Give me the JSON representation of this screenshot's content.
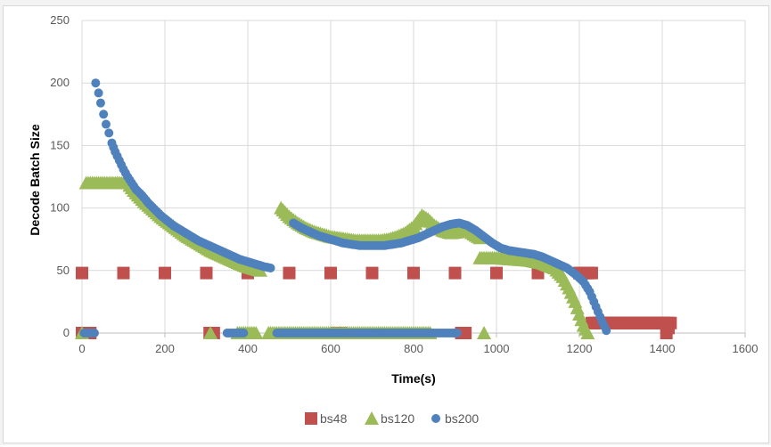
{
  "chart_data": {
    "type": "scatter",
    "title": "",
    "xlabel": "Time(s)",
    "ylabel": "Decode Batch Size",
    "xlim": [
      0,
      1600
    ],
    "ylim": [
      0,
      250
    ],
    "xticks": [
      0,
      200,
      400,
      600,
      800,
      1000,
      1200,
      1400,
      1600
    ],
    "yticks": [
      0,
      50,
      100,
      150,
      200,
      250
    ],
    "grid": true,
    "legend": "bottom",
    "series": [
      {
        "name": "bs48",
        "color": "#c0504d",
        "marker": "square",
        "points": [
          [
            0,
            0
          ],
          [
            10,
            0
          ],
          [
            20,
            0
          ],
          [
            0,
            48
          ],
          [
            100,
            48
          ],
          [
            200,
            48
          ],
          [
            300,
            48
          ],
          [
            400,
            48
          ],
          [
            500,
            48
          ],
          [
            600,
            48
          ],
          [
            700,
            48
          ],
          [
            800,
            48
          ],
          [
            900,
            48
          ],
          [
            1000,
            48
          ],
          [
            1100,
            48
          ],
          [
            1200,
            48
          ],
          [
            1230,
            48
          ],
          [
            308,
            0
          ],
          [
            318,
            0
          ],
          [
            615,
            0
          ],
          [
            625,
            0
          ],
          [
            915,
            0
          ],
          [
            925,
            0
          ],
          [
            1230,
            8
          ],
          [
            1280,
            8
          ],
          [
            1330,
            8
          ],
          [
            1380,
            8
          ],
          [
            1420,
            8
          ],
          [
            1410,
            0
          ]
        ]
      },
      {
        "name": "bs120",
        "color": "#9bbb59",
        "marker": "triangle",
        "points": [
          [
            0,
            0
          ],
          [
            10,
            120
          ],
          [
            30,
            120
          ],
          [
            50,
            120
          ],
          [
            70,
            120
          ],
          [
            90,
            120
          ],
          [
            110,
            120
          ],
          [
            130,
            112
          ],
          [
            150,
            105
          ],
          [
            170,
            99
          ],
          [
            190,
            93
          ],
          [
            210,
            88
          ],
          [
            230,
            83
          ],
          [
            250,
            78
          ],
          [
            270,
            74
          ],
          [
            290,
            70
          ],
          [
            310,
            66
          ],
          [
            330,
            63
          ],
          [
            350,
            60
          ],
          [
            370,
            57
          ],
          [
            390,
            54
          ],
          [
            410,
            52
          ],
          [
            430,
            50
          ],
          [
            310,
            0
          ],
          [
            375,
            0
          ],
          [
            420,
            0
          ],
          [
            480,
            100
          ],
          [
            500,
            93
          ],
          [
            520,
            88
          ],
          [
            540,
            84
          ],
          [
            560,
            81
          ],
          [
            580,
            79
          ],
          [
            600,
            77
          ],
          [
            620,
            76
          ],
          [
            640,
            75
          ],
          [
            660,
            74
          ],
          [
            680,
            74
          ],
          [
            700,
            74
          ],
          [
            720,
            74
          ],
          [
            740,
            75
          ],
          [
            760,
            77
          ],
          [
            780,
            80
          ],
          [
            800,
            85
          ],
          [
            820,
            94
          ],
          [
            835,
            91
          ],
          [
            850,
            86
          ],
          [
            870,
            82
          ],
          [
            890,
            80
          ],
          [
            910,
            81
          ],
          [
            925,
            84
          ],
          [
            940,
            80
          ],
          [
            960,
            76
          ],
          [
            960,
            60
          ],
          [
            1000,
            60
          ],
          [
            1040,
            59
          ],
          [
            1080,
            58
          ],
          [
            1110,
            56
          ],
          [
            1140,
            52
          ],
          [
            1160,
            45
          ],
          [
            1175,
            36
          ],
          [
            1190,
            25
          ],
          [
            1200,
            15
          ],
          [
            1210,
            6
          ],
          [
            1220,
            0
          ],
          [
            450,
            0
          ],
          [
            500,
            0
          ],
          [
            550,
            0
          ],
          [
            600,
            0
          ],
          [
            650,
            0
          ],
          [
            700,
            0
          ],
          [
            750,
            0
          ],
          [
            800,
            0
          ],
          [
            840,
            0
          ],
          [
            970,
            0
          ]
        ]
      },
      {
        "name": "bs200",
        "color": "#4f81bd",
        "marker": "circle",
        "points": [
          [
            5,
            0
          ],
          [
            30,
            0
          ],
          [
            33,
            200
          ],
          [
            40,
            192
          ],
          [
            45,
            184
          ],
          [
            52,
            175
          ],
          [
            58,
            167
          ],
          [
            65,
            160
          ],
          [
            72,
            152
          ],
          [
            80,
            145
          ],
          [
            90,
            138
          ],
          [
            100,
            131
          ],
          [
            110,
            125
          ],
          [
            120,
            120
          ],
          [
            130,
            115
          ],
          [
            145,
            110
          ],
          [
            160,
            104
          ],
          [
            175,
            99
          ],
          [
            190,
            94
          ],
          [
            205,
            90
          ],
          [
            220,
            86
          ],
          [
            240,
            82
          ],
          [
            260,
            78
          ],
          [
            280,
            74
          ],
          [
            300,
            71
          ],
          [
            320,
            68
          ],
          [
            340,
            65
          ],
          [
            360,
            62
          ],
          [
            380,
            59
          ],
          [
            400,
            57
          ],
          [
            420,
            55
          ],
          [
            440,
            53
          ],
          [
            455,
            52
          ],
          [
            350,
            0
          ],
          [
            390,
            0
          ],
          [
            470,
            0
          ],
          [
            520,
            0
          ],
          [
            570,
            0
          ],
          [
            620,
            0
          ],
          [
            670,
            0
          ],
          [
            720,
            0
          ],
          [
            770,
            0
          ],
          [
            820,
            0
          ],
          [
            870,
            0
          ],
          [
            905,
            0
          ],
          [
            510,
            88
          ],
          [
            530,
            84
          ],
          [
            550,
            81
          ],
          [
            570,
            78
          ],
          [
            590,
            76
          ],
          [
            610,
            74
          ],
          [
            630,
            72
          ],
          [
            650,
            71
          ],
          [
            670,
            70
          ],
          [
            690,
            70
          ],
          [
            710,
            70
          ],
          [
            730,
            70
          ],
          [
            750,
            71
          ],
          [
            770,
            72
          ],
          [
            790,
            74
          ],
          [
            810,
            76
          ],
          [
            830,
            79
          ],
          [
            850,
            82
          ],
          [
            870,
            85
          ],
          [
            890,
            87
          ],
          [
            910,
            88
          ],
          [
            930,
            86
          ],
          [
            950,
            82
          ],
          [
            970,
            77
          ],
          [
            990,
            72
          ],
          [
            1010,
            68
          ],
          [
            1030,
            66
          ],
          [
            1050,
            65
          ],
          [
            1070,
            64
          ],
          [
            1090,
            63
          ],
          [
            1110,
            61
          ],
          [
            1130,
            58
          ],
          [
            1150,
            55
          ],
          [
            1170,
            52
          ],
          [
            1190,
            47
          ],
          [
            1210,
            41
          ],
          [
            1225,
            33
          ],
          [
            1235,
            25
          ],
          [
            1245,
            17
          ],
          [
            1255,
            9
          ],
          [
            1265,
            2
          ]
        ]
      }
    ]
  }
}
